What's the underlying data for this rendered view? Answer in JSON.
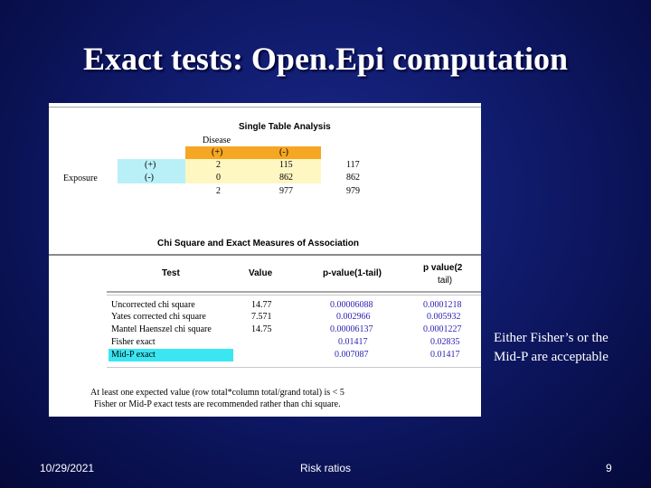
{
  "title": "Exact tests: Open.Epi computation",
  "screenshot": {
    "single_table_title": "Single Table Analysis",
    "disease_label": "Disease",
    "disease_pos": "(+)",
    "disease_neg": "(-)",
    "exposure_label": "Exposure",
    "rows": [
      {
        "label": "(+)",
        "a": "2",
        "b": "115",
        "total": "117"
      },
      {
        "label": "(-)",
        "a": "0",
        "b": "862",
        "total": "862"
      },
      {
        "label": "",
        "a": "2",
        "b": "977",
        "total": "979"
      }
    ],
    "chi_title": "Chi Square and Exact Measures of Association",
    "headers": {
      "test": "Test",
      "value": "Value",
      "p1": "p-value(1-tail)",
      "p2a": "p value(2",
      "p2b": "tail)"
    },
    "tests": [
      {
        "name": "Uncorrected chi square",
        "value": "14.77",
        "p1": "0.00006088",
        "p2": "0.0001218"
      },
      {
        "name": "Yates corrected chi square",
        "value": "7.571",
        "p1": "0.002966",
        "p2": "0.005932"
      },
      {
        "name": "Mantel Haenszel chi square",
        "value": "14.75",
        "p1": "0.00006137",
        "p2": "0.0001227"
      },
      {
        "name": "Fisher exact",
        "value": "",
        "p1": "0.01417",
        "p2": "0.02835"
      },
      {
        "name": "Mid-P exact",
        "value": "",
        "p1": "0.007087",
        "p2": "0.01417"
      }
    ],
    "footnote1": "At least one expected value (row total*column total/grand total) is < 5",
    "footnote2": "Fisher or Mid-P exact tests are recommended rather than chi square."
  },
  "note_line1": "Either Fisher’s or the",
  "note_line2": "Mid-P are acceptable",
  "footer": {
    "date": "10/29/2021",
    "center": "Risk ratios",
    "page": "9"
  },
  "colors": {
    "orange": "#f5a623",
    "light_yellow": "#fff7c2",
    "cyan": "#b9f0f7",
    "highlight": "#39e6f2",
    "blue_text": "#2a1fb0"
  }
}
